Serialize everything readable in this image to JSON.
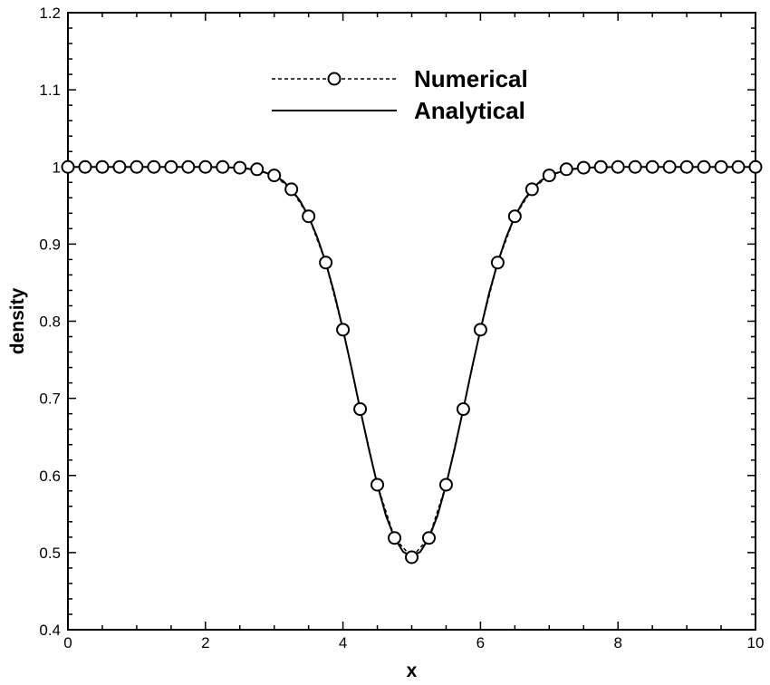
{
  "chart_data": {
    "type": "line",
    "title": "",
    "xlabel": "x",
    "ylabel": "density",
    "xlim": [
      0,
      10
    ],
    "ylim": [
      0.4,
      1.2
    ],
    "x_ticks": [
      0,
      2,
      4,
      6,
      8,
      10
    ],
    "x_tick_labels": [
      "0",
      "2",
      "4",
      "6",
      "8",
      "10"
    ],
    "y_ticks": [
      0.4,
      0.5,
      0.6,
      0.7,
      0.8,
      0.9,
      1.0,
      1.1,
      1.2
    ],
    "y_tick_labels": [
      "0.4",
      "0.5",
      "0.6",
      "0.7",
      "0.8",
      "0.9",
      "1",
      "1.1",
      "1.2"
    ],
    "grid": false,
    "legend_position": "top-center",
    "series": [
      {
        "name": "Numerical",
        "style": "dashed-line-circle-markers",
        "x": [
          0,
          0.25,
          0.5,
          0.75,
          1,
          1.25,
          1.5,
          1.75,
          2,
          2.25,
          2.5,
          2.75,
          3,
          3.25,
          3.5,
          3.75,
          4,
          4.25,
          4.5,
          4.75,
          5,
          5.25,
          5.5,
          5.75,
          6,
          6.25,
          6.5,
          6.75,
          7,
          7.25,
          7.5,
          7.75,
          8,
          8.25,
          8.5,
          8.75,
          9,
          9.25,
          9.5,
          9.75,
          10
        ],
        "y": [
          1.0,
          1.0,
          1.0,
          1.0,
          1.0,
          1.0,
          1.0,
          1.0,
          1.0,
          1.0,
          0.999,
          0.997,
          0.989,
          0.971,
          0.936,
          0.876,
          0.789,
          0.686,
          0.588,
          0.519,
          0.494,
          0.519,
          0.588,
          0.686,
          0.789,
          0.876,
          0.936,
          0.971,
          0.989,
          0.997,
          0.999,
          1.0,
          1.0,
          1.0,
          1.0,
          1.0,
          1.0,
          1.0,
          1.0,
          1.0,
          1.0
        ]
      },
      {
        "name": "Analytical",
        "style": "solid-line",
        "x": [
          0,
          0.5,
          1,
          1.5,
          2,
          2.25,
          2.5,
          2.75,
          3,
          3.125,
          3.25,
          3.375,
          3.5,
          3.625,
          3.75,
          3.875,
          4,
          4.125,
          4.25,
          4.375,
          4.5,
          4.625,
          4.75,
          4.875,
          5,
          5.125,
          5.25,
          5.375,
          5.5,
          5.625,
          5.75,
          5.875,
          6,
          6.125,
          6.25,
          6.375,
          6.5,
          6.625,
          6.75,
          6.875,
          7,
          7.25,
          7.5,
          7.75,
          8,
          8.5,
          9,
          9.5,
          10
        ],
        "y": [
          1.0,
          1.0,
          1.0,
          1.0,
          1.0,
          0.9995,
          0.999,
          0.996,
          0.989,
          0.982,
          0.971,
          0.956,
          0.936,
          0.909,
          0.876,
          0.836,
          0.789,
          0.739,
          0.686,
          0.635,
          0.588,
          0.548,
          0.519,
          0.501,
          0.495,
          0.501,
          0.519,
          0.548,
          0.588,
          0.635,
          0.686,
          0.739,
          0.789,
          0.836,
          0.876,
          0.909,
          0.936,
          0.956,
          0.971,
          0.982,
          0.989,
          0.996,
          0.999,
          0.9995,
          1.0,
          1.0,
          1.0,
          1.0,
          1.0
        ]
      }
    ]
  }
}
